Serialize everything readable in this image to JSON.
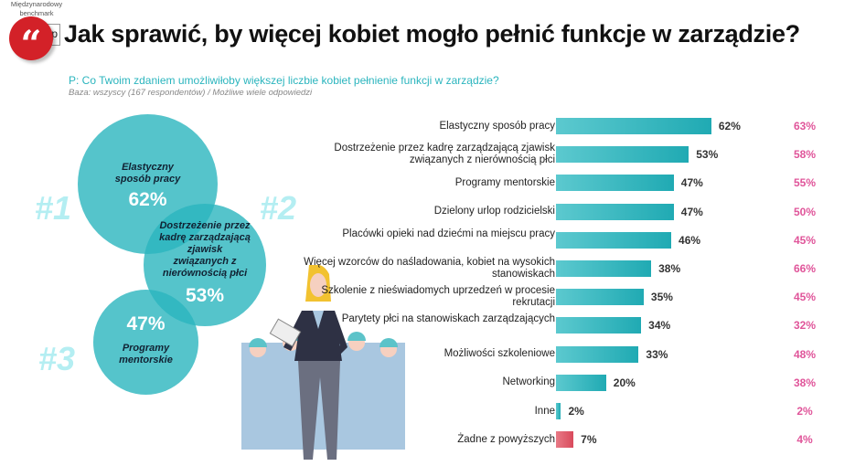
{
  "title": "Jak sprawić, by więcej kobiet mogło pełnić funkcje w zarządzie?",
  "quote_icon": "quote-icon",
  "question": "P: Co Twoim zdaniem umożliwiłoby większej liczbie kobiet pełnienie funkcji w zarządzie?",
  "base": "Baza: wszyscy (167 respondentów) / Możliwe wiele odpowiedzi",
  "benchmark": {
    "label1": "Międzynarodowy",
    "label2": "benchmark",
    "logo1": "GWPR",
    "logo2": "Op"
  },
  "top3": [
    {
      "rank": "#1",
      "label": "Elastyczny sposób pracy",
      "value": "62%"
    },
    {
      "rank": "#2",
      "label": "Dostrzeżenie przez kadrę zarządzającą zjawisk związanych z nierównością płci",
      "value": "53%"
    },
    {
      "rank": "#3",
      "label": "Programy mentorskie",
      "value": "47%"
    }
  ],
  "colors": {
    "accent": "#2bb5be",
    "benchmark": "#e0559a",
    "none_bar": "#e05a6a",
    "title_badge": "#d32128"
  },
  "chart_data": {
    "type": "bar",
    "orientation": "horizontal",
    "categories": [
      "Elastyczny sposób pracy",
      "Dostrzeżenie przez kadrę zarządzającą zjawisk związanych z nierównością płci",
      "Programy mentorskie",
      "Dzielony urlop rodzicielski",
      "Placówki opieki nad dziećmi na miejscu pracy",
      "Więcej wzorców do naśladowania, kobiet na wysokich stanowiskach",
      "Szkolenie z nieświadomych uprzedzeń w procesie rekrutacji",
      "Parytety płci na stanowiskach zarządzających",
      "Możliwości szkoleniowe",
      "Networking",
      "Inne",
      "Żadne z powyższych"
    ],
    "values": [
      62,
      53,
      47,
      47,
      46,
      38,
      35,
      34,
      33,
      20,
      2,
      7
    ],
    "value_labels": [
      "62%",
      "53%",
      "47%",
      "47%",
      "46%",
      "38%",
      "35%",
      "34%",
      "33%",
      "20%",
      "2%",
      "7%"
    ],
    "benchmark_values": [
      63,
      58,
      55,
      50,
      45,
      66,
      45,
      32,
      48,
      38,
      2,
      4
    ],
    "benchmark_labels": [
      "63%",
      "58%",
      "55%",
      "50%",
      "45%",
      "66%",
      "45%",
      "32%",
      "48%",
      "38%",
      "2%",
      "4%"
    ],
    "unit": "%"
  }
}
